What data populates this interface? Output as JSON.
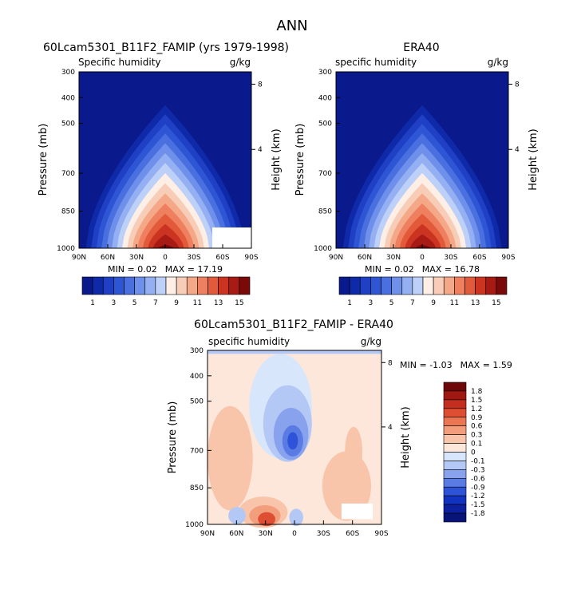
{
  "figure_title": "ANN",
  "colors": {
    "seq": [
      "#0a1a8c",
      "#0f2aa8",
      "#1f3fc4",
      "#2e55d4",
      "#4a70e0",
      "#6f90ea",
      "#95b0f2",
      "#bcd0f8",
      "#fdeee6",
      "#f8cdb8",
      "#f4a888",
      "#ee8060",
      "#e25a3a",
      "#cc3422",
      "#a81a14",
      "#7a0a0a"
    ],
    "div": [
      "#08147a",
      "#0c20a0",
      "#1232c0",
      "#2e52d8",
      "#5a7ae4",
      "#88a2ee",
      "#b4c8f6",
      "#d8e6fb",
      "#fde6da",
      "#f8c4aa",
      "#f29e7c",
      "#ea7654",
      "#de4e32",
      "#c42e1e",
      "#a01812",
      "#6e0808"
    ]
  },
  "chart_data": [
    {
      "type": "heatmap",
      "title": "60Lcam5301_B11F2_FAMIP (yrs 1979-1998)",
      "subtitle_left": "Specific humidity",
      "subtitle_right": "g/kg",
      "ylabel": "Pressure (mb)",
      "ylabel_right": "Height (km)",
      "x_ticks": [
        "90N",
        "60N",
        "30N",
        "0",
        "30S",
        "60S",
        "90S"
      ],
      "y_ticks": [
        "300",
        "400",
        "500",
        "700",
        "850",
        "1000"
      ],
      "y_ticks_right": [
        "8",
        "4"
      ],
      "min_label": "MIN = ",
      "min": "0.02",
      "max_label": "MAX = ",
      "max": "17.19",
      "colorbar_labels": [
        "1",
        "3",
        "5",
        "7",
        "9",
        "11",
        "13",
        "15"
      ],
      "peak": 17.19,
      "missing": "surface"
    },
    {
      "type": "heatmap",
      "title": "ERA40",
      "subtitle_left": "specific humidity",
      "subtitle_right": "g/kg",
      "ylabel": "Pressure (mb)",
      "ylabel_right": "Height (km)",
      "x_ticks": [
        "90N",
        "60N",
        "30N",
        "0",
        "30S",
        "60S",
        "90S"
      ],
      "y_ticks": [
        "300",
        "400",
        "500",
        "700",
        "850",
        "1000"
      ],
      "y_ticks_right": [
        "8",
        "4"
      ],
      "min_label": "MIN = ",
      "min": "0.02",
      "max_label": "MAX = ",
      "max": "16.78",
      "colorbar_labels": [
        "1",
        "3",
        "5",
        "7",
        "9",
        "11",
        "13",
        "15"
      ],
      "peak": 16.78,
      "missing": "none"
    },
    {
      "type": "heatmap",
      "title": "60Lcam5301_B11F2_FAMIP - ERA40",
      "subtitle_left": "specific humidity",
      "subtitle_right": "g/kg",
      "ylabel": "Pressure (mb)",
      "ylabel_right": "Height (km)",
      "x_ticks": [
        "90N",
        "60N",
        "30N",
        "0",
        "30S",
        "60S",
        "90S"
      ],
      "y_ticks": [
        "300",
        "400",
        "500",
        "700",
        "850",
        "1000"
      ],
      "y_ticks_right": [
        "8",
        "4"
      ],
      "min_label": "MIN = ",
      "min": "-1.03",
      "max_label": "MAX = ",
      "max": "1.59",
      "colorbar_labels": [
        "1.8",
        "1.5",
        "1.2",
        "0.9",
        "0.6",
        "0.3",
        "0.1",
        "0",
        "-0.1",
        "-0.3",
        "-0.6",
        "-0.9",
        "-1.2",
        "-1.5",
        "-1.8"
      ]
    }
  ]
}
